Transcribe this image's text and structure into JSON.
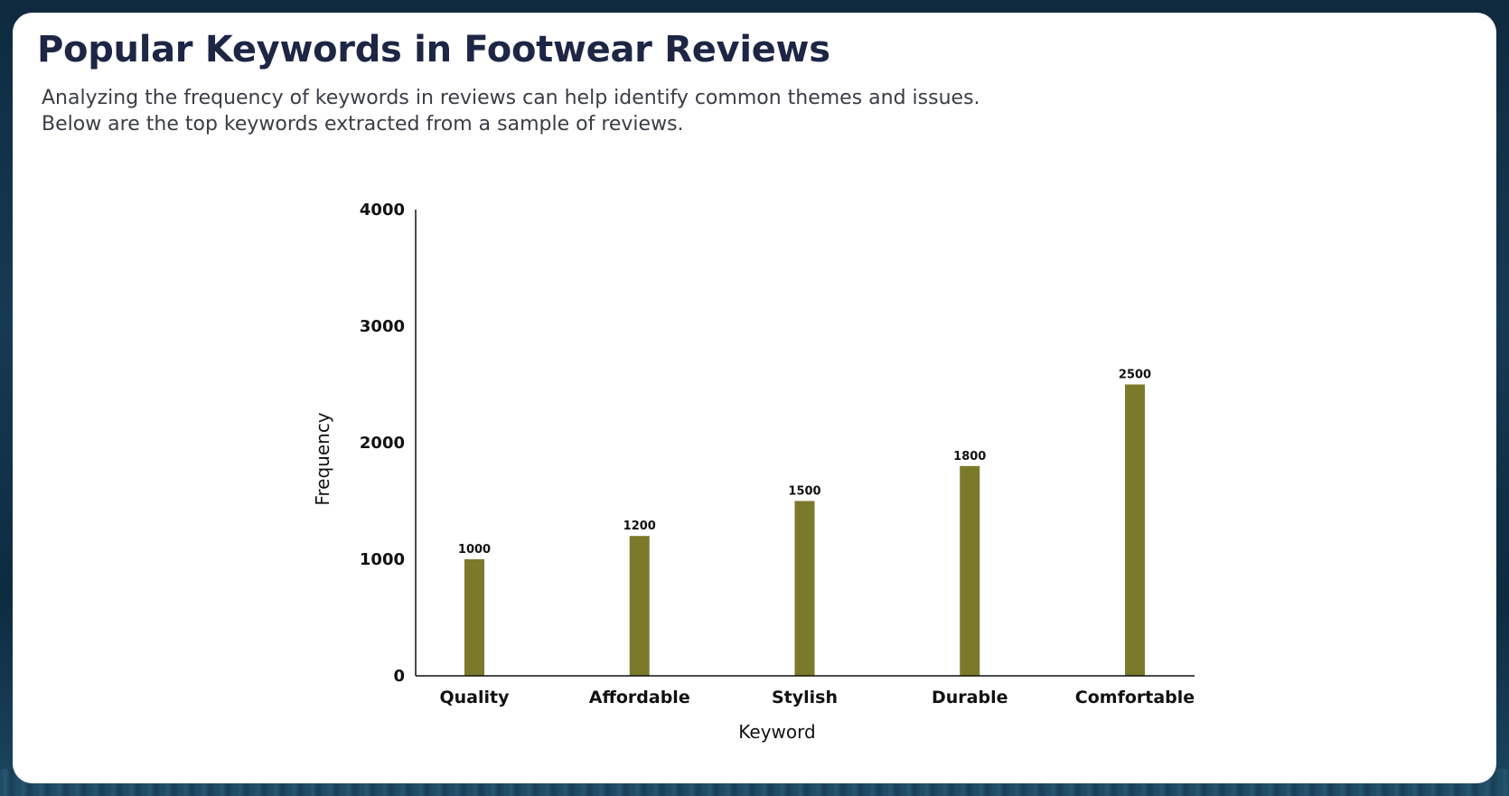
{
  "page": {
    "title": "Popular Keywords in Footwear Reviews",
    "description_line1": "Analyzing the frequency of keywords in reviews can help identify common themes and issues.",
    "description_line2": "Below are the top keywords extracted from a sample of reviews."
  },
  "chart_data": {
    "type": "bar",
    "title": "",
    "xlabel": "Keyword",
    "ylabel": "Frequency",
    "categories": [
      "Quality",
      "Affordable",
      "Stylish",
      "Durable",
      "Comfortable"
    ],
    "values": [
      1000,
      1200,
      1500,
      1800,
      2500
    ],
    "value_labels": [
      "1000",
      "1200",
      "1500",
      "1800",
      "2500"
    ],
    "ylim": [
      0,
      4000
    ],
    "yticks": [
      0,
      1000,
      2000,
      3000,
      4000
    ],
    "ytick_labels": [
      "0",
      "1000",
      "2000",
      "3000",
      "4000"
    ],
    "grid": false,
    "bar_color": "#7a7a2a",
    "axis_color": "#111111"
  }
}
